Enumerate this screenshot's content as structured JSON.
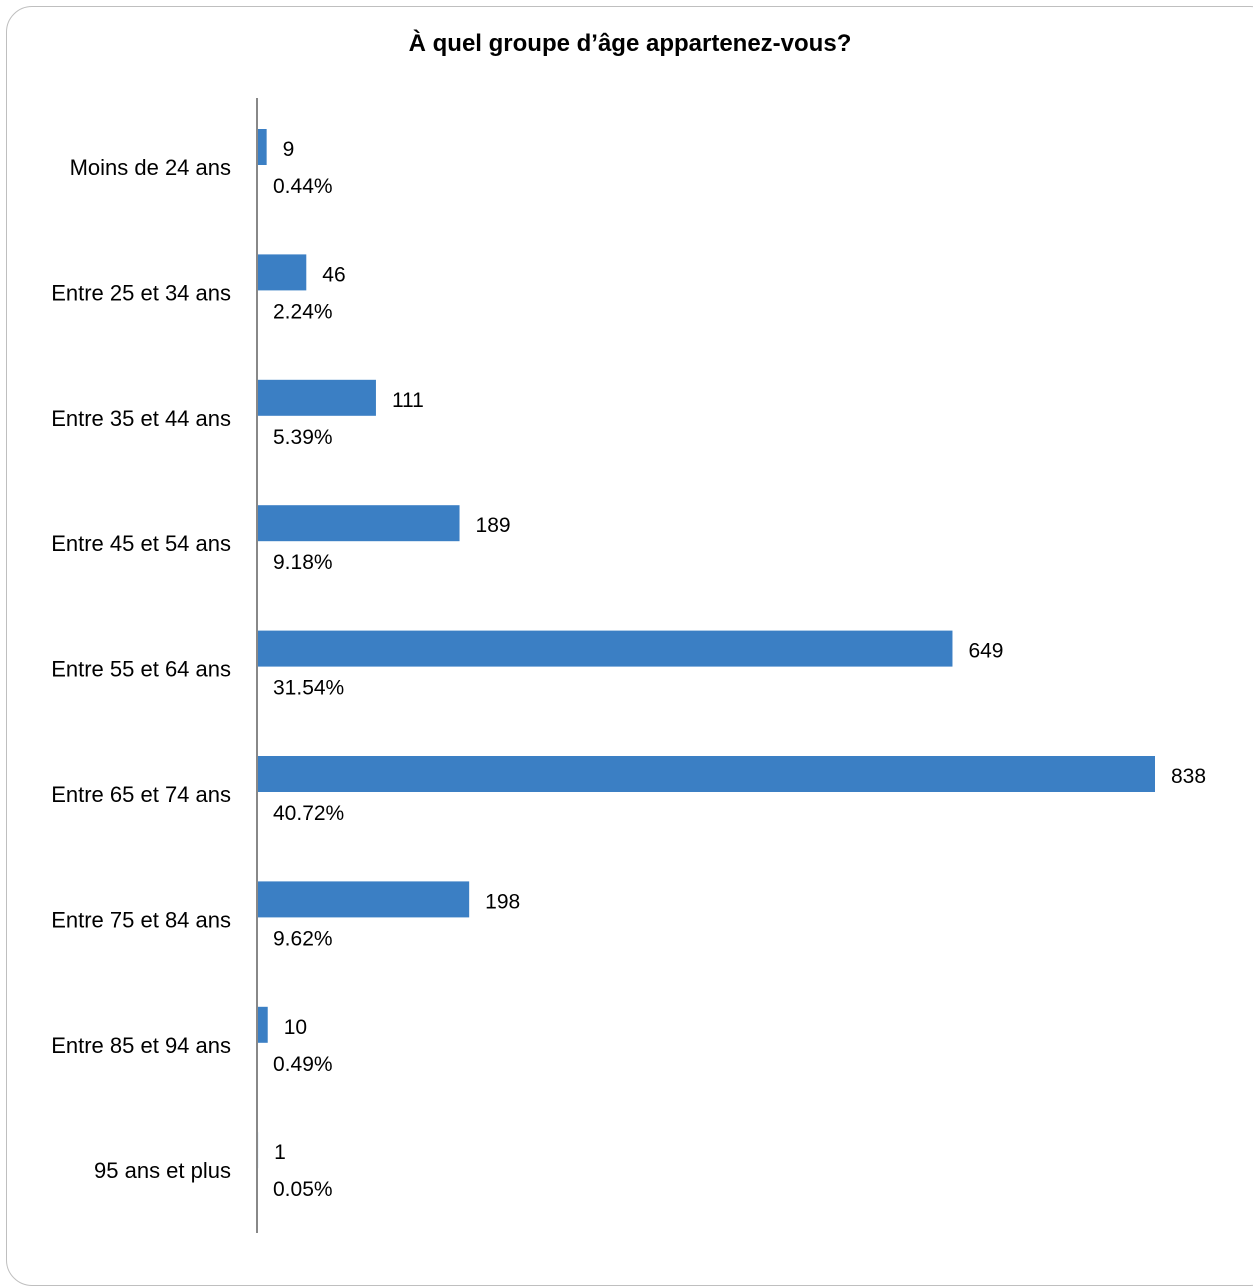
{
  "chart_data": {
    "type": "bar",
    "orientation": "horizontal",
    "title": "À quel groupe d’âge appartenez-vous?",
    "categories": [
      "Moins de 24 ans",
      "Entre 25 et 34 ans",
      "Entre 35 et 44 ans",
      "Entre 45 et 54 ans",
      "Entre 55 et 64 ans",
      "Entre 65 et 74 ans",
      "Entre 75 et 84 ans",
      "Entre 85 et 94 ans",
      "95 ans et plus"
    ],
    "values": [
      9,
      46,
      111,
      189,
      649,
      838,
      198,
      10,
      1
    ],
    "percent_labels": [
      "0.44%",
      "2.24%",
      "5.39%",
      "9.18%",
      "31.54%",
      "40.72%",
      "9.62%",
      "0.49%",
      "0.05%"
    ],
    "xlim": [
      0,
      838
    ],
    "grid": false,
    "bar_color": "#3b7fc4",
    "axis_color": "#888888"
  }
}
